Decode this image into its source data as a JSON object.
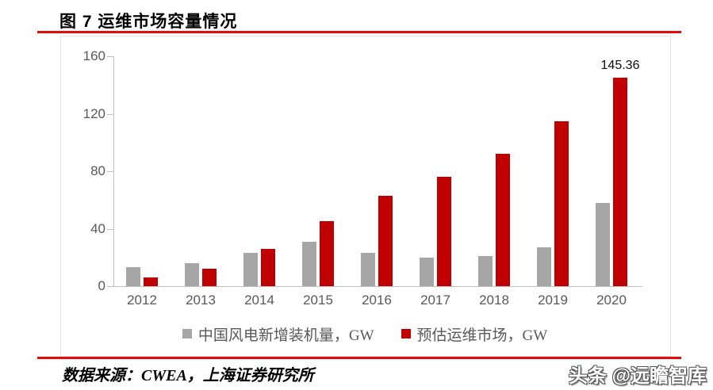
{
  "header": {
    "title": "图 7 运维市场容量情况"
  },
  "chart_data": {
    "type": "bar",
    "title": "图 7 运维市场容量情况",
    "categories": [
      "2012",
      "2013",
      "2014",
      "2015",
      "2016",
      "2017",
      "2018",
      "2019",
      "2020"
    ],
    "series": [
      {
        "name": "中国风电新增装机量，GW",
        "color": "#a6a6a6",
        "values": [
          13,
          16,
          23,
          31,
          23,
          20,
          21,
          27,
          58
        ]
      },
      {
        "name": "预估运维市场，GW",
        "color": "#c00000",
        "values": [
          6,
          12,
          26,
          45,
          63,
          76,
          92,
          115,
          145.36
        ]
      }
    ],
    "xlabel": "",
    "ylabel": "",
    "ylim": [
      0,
      160
    ],
    "yticks": [
      0,
      40,
      80,
      120,
      160
    ],
    "grid": false,
    "legend_position": "bottom",
    "data_labels": [
      {
        "series_index": 1,
        "category_index": 8,
        "text": "145.36"
      }
    ]
  },
  "footer": {
    "source": "数据来源：CWEA，上海证券研究所",
    "watermark": "头条 @远瞻智库"
  },
  "colors": {
    "accent_rule": "#e60b0b",
    "axis_text": "#595959",
    "axis_line": "#bfbfbf",
    "data_label_text": "#0d0d0d"
  }
}
